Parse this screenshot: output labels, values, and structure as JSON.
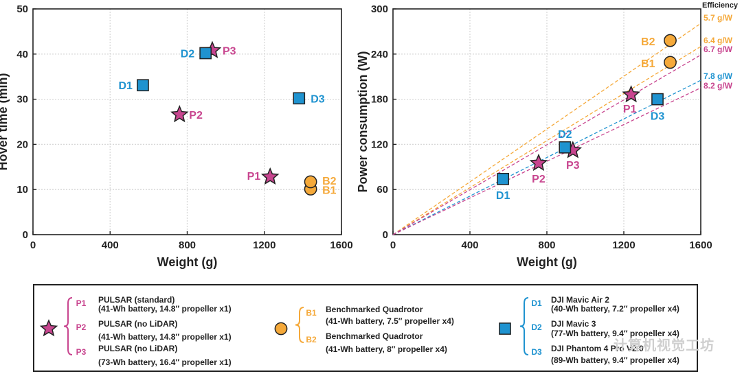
{
  "chart_data": [
    {
      "type": "scatter",
      "xlabel": "Weight (g)",
      "ylabel": "Hover time (min)",
      "xlim": [
        0,
        1600
      ],
      "ylim": [
        0,
        50
      ],
      "xticks": [
        "0",
        "400",
        "800",
        "1200",
        "1600"
      ],
      "yticks": [
        "0",
        "10",
        "20",
        "30",
        "40",
        "50"
      ],
      "grid": true,
      "points": [
        {
          "label": "P1",
          "x": 1230,
          "y": 12.8,
          "marker": "star",
          "color": "#c8458f"
        },
        {
          "label": "P2",
          "x": 760,
          "y": 26.6,
          "marker": "star",
          "color": "#c8458f"
        },
        {
          "label": "P3",
          "x": 930,
          "y": 40.8,
          "marker": "star",
          "color": "#c8458f"
        },
        {
          "label": "B1",
          "x": 1440,
          "y": 10.1,
          "marker": "circle",
          "color": "#f5a93a"
        },
        {
          "label": "B2",
          "x": 1440,
          "y": 11.7,
          "marker": "circle",
          "color": "#f5a93a"
        },
        {
          "label": "D1",
          "x": 570,
          "y": 33.1,
          "marker": "square",
          "color": "#1f93d0"
        },
        {
          "label": "D2",
          "x": 895,
          "y": 40.2,
          "marker": "square",
          "color": "#1f93d0"
        },
        {
          "label": "D3",
          "x": 1380,
          "y": 30.2,
          "marker": "square",
          "color": "#1f93d0"
        }
      ]
    },
    {
      "type": "scatter",
      "xlabel": "Weight (g)",
      "ylabel": "Power consumption (W)",
      "xlim": [
        0,
        1600
      ],
      "ylim": [
        0,
        300
      ],
      "xticks": [
        "0",
        "400",
        "800",
        "1200",
        "1600"
      ],
      "yticks": [
        "0",
        "60",
        "120",
        "180",
        "240",
        "300"
      ],
      "grid": true,
      "efficiency_title": "Efficiency",
      "efficiency_lines": [
        {
          "label": "5.7 g/W",
          "gw": 5.7,
          "color": "#f5a93a"
        },
        {
          "label": "6.4 g/W",
          "gw": 6.4,
          "color": "#f5a93a"
        },
        {
          "label": "6.7 g/W",
          "gw": 6.7,
          "color": "#c8458f"
        },
        {
          "label": "7.8 g/W",
          "gw": 7.8,
          "color": "#1f93d0"
        },
        {
          "label": "8.2 g/W",
          "gw": 8.2,
          "color": "#c8458f"
        }
      ],
      "points": [
        {
          "label": "P1",
          "x": 1238,
          "y": 186,
          "marker": "star",
          "color": "#c8458f"
        },
        {
          "label": "P2",
          "x": 757,
          "y": 95,
          "marker": "star",
          "color": "#c8458f"
        },
        {
          "label": "P3",
          "x": 935,
          "y": 112,
          "marker": "star",
          "color": "#c8458f"
        },
        {
          "label": "B1",
          "x": 1441,
          "y": 229,
          "marker": "circle",
          "color": "#f5a93a"
        },
        {
          "label": "B2",
          "x": 1441,
          "y": 258,
          "marker": "circle",
          "color": "#f5a93a"
        },
        {
          "label": "D1",
          "x": 572,
          "y": 74,
          "marker": "square",
          "color": "#1f93d0"
        },
        {
          "label": "D2",
          "x": 894,
          "y": 116,
          "marker": "square",
          "color": "#1f93d0"
        },
        {
          "label": "D3",
          "x": 1375,
          "y": 180,
          "marker": "square",
          "color": "#1f93d0"
        }
      ]
    }
  ],
  "legend": {
    "groups": [
      {
        "marker": "star",
        "color": "#c8458f",
        "entries": [
          {
            "id": "P1",
            "title": "PULSAR (standard)",
            "detail": "(41-Wh battery, 14.8″ propeller x1)"
          },
          {
            "id": "P2",
            "title": "PULSAR (no LiDAR)",
            "detail": "(41-Wh battery, 14.8″ propeller x1)"
          },
          {
            "id": "P3",
            "title": "PULSAR (no LiDAR)",
            "detail": "(73-Wh battery, 16.4″ propeller x1)"
          }
        ]
      },
      {
        "marker": "circle",
        "color": "#f5a93a",
        "entries": [
          {
            "id": "B1",
            "title": "Benchmarked Quadrotor",
            "detail": "(41-Wh battery, 7.5″ propeller x4)"
          },
          {
            "id": "B2",
            "title": "Benchmarked Quadrotor",
            "detail": "(41-Wh battery, 8″ propeller x4)"
          }
        ]
      },
      {
        "marker": "square",
        "color": "#1f93d0",
        "entries": [
          {
            "id": "D1",
            "title": "DJI Mavic Air 2",
            "detail": "(40-Wh battery, 7.2″ propeller x4)"
          },
          {
            "id": "D2",
            "title": "DJI Mavic 3",
            "detail": "(77-Wh battery, 9.4″ propeller x4)"
          },
          {
            "id": "D3",
            "title": "DJI Phantom 4 Pro V2.0",
            "detail": "(89-Wh battery, 9.4″ propeller x4)"
          }
        ]
      }
    ]
  },
  "watermark": "计算机视觉工坊"
}
